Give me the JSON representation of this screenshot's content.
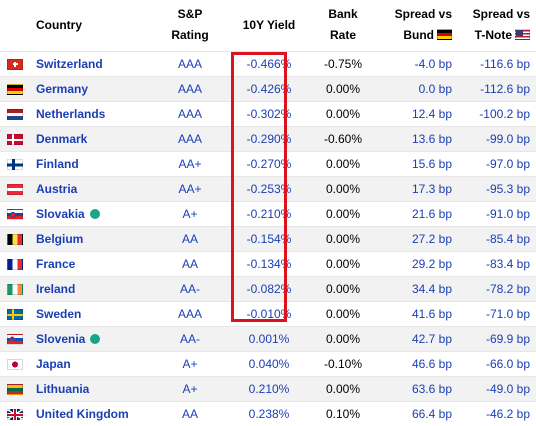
{
  "header": {
    "country": "Country",
    "rating_l1": "S&P",
    "rating_l2": "Rating",
    "yield": "10Y Yield",
    "bank_l1": "Bank",
    "bank_l2": "Rate",
    "bund_l1": "Spread vs",
    "bund_l2": "Bund",
    "tnote_l1": "Spread vs",
    "tnote_l2": "T-Note",
    "bund_flag_icon": "germany-flag-icon",
    "tnote_flag_icon": "usa-flag-icon"
  },
  "colors": {
    "link": "#1a3fb5",
    "highlight_border": "#d9141c",
    "status_dot": "#1aa48a",
    "row_alt_bg": "#f2f2f2"
  },
  "rows": [
    {
      "country": "Switzerland",
      "flag_icon": "switzerland-flag-icon",
      "dot": false,
      "rating": "AAA",
      "yield": "-0.466%",
      "bank_rate": "-0.75%",
      "spread_bund": "-4.0 bp",
      "spread_tnote": "-116.6 bp"
    },
    {
      "country": "Germany",
      "flag_icon": "germany-flag-icon",
      "dot": false,
      "rating": "AAA",
      "yield": "-0.426%",
      "bank_rate": "0.00%",
      "spread_bund": "0.0 bp",
      "spread_tnote": "-112.6 bp"
    },
    {
      "country": "Netherlands",
      "flag_icon": "netherlands-flag-icon",
      "dot": false,
      "rating": "AAA",
      "yield": "-0.302%",
      "bank_rate": "0.00%",
      "spread_bund": "12.4 bp",
      "spread_tnote": "-100.2 bp"
    },
    {
      "country": "Denmark",
      "flag_icon": "denmark-flag-icon",
      "dot": false,
      "rating": "AAA",
      "yield": "-0.290%",
      "bank_rate": "-0.60%",
      "spread_bund": "13.6 bp",
      "spread_tnote": "-99.0 bp"
    },
    {
      "country": "Finland",
      "flag_icon": "finland-flag-icon",
      "dot": false,
      "rating": "AA+",
      "yield": "-0.270%",
      "bank_rate": "0.00%",
      "spread_bund": "15.6 bp",
      "spread_tnote": "-97.0 bp"
    },
    {
      "country": "Austria",
      "flag_icon": "austria-flag-icon",
      "dot": false,
      "rating": "AA+",
      "yield": "-0.253%",
      "bank_rate": "0.00%",
      "spread_bund": "17.3 bp",
      "spread_tnote": "-95.3 bp"
    },
    {
      "country": "Slovakia",
      "flag_icon": "slovakia-flag-icon",
      "dot": true,
      "rating": "A+",
      "yield": "-0.210%",
      "bank_rate": "0.00%",
      "spread_bund": "21.6 bp",
      "spread_tnote": "-91.0 bp"
    },
    {
      "country": "Belgium",
      "flag_icon": "belgium-flag-icon",
      "dot": false,
      "rating": "AA",
      "yield": "-0.154%",
      "bank_rate": "0.00%",
      "spread_bund": "27.2 bp",
      "spread_tnote": "-85.4 bp"
    },
    {
      "country": "France",
      "flag_icon": "france-flag-icon",
      "dot": false,
      "rating": "AA",
      "yield": "-0.134%",
      "bank_rate": "0.00%",
      "spread_bund": "29.2 bp",
      "spread_tnote": "-83.4 bp"
    },
    {
      "country": "Ireland",
      "flag_icon": "ireland-flag-icon",
      "dot": false,
      "rating": "AA-",
      "yield": "-0.082%",
      "bank_rate": "0.00%",
      "spread_bund": "34.4 bp",
      "spread_tnote": "-78.2 bp"
    },
    {
      "country": "Sweden",
      "flag_icon": "sweden-flag-icon",
      "dot": false,
      "rating": "AAA",
      "yield": "-0.010%",
      "bank_rate": "0.00%",
      "spread_bund": "41.6 bp",
      "spread_tnote": "-71.0 bp"
    },
    {
      "country": "Slovenia",
      "flag_icon": "slovenia-flag-icon",
      "dot": true,
      "rating": "AA-",
      "yield": "0.001%",
      "bank_rate": "0.00%",
      "spread_bund": "42.7 bp",
      "spread_tnote": "-69.9 bp"
    },
    {
      "country": "Japan",
      "flag_icon": "japan-flag-icon",
      "dot": false,
      "rating": "A+",
      "yield": "0.040%",
      "bank_rate": "-0.10%",
      "spread_bund": "46.6 bp",
      "spread_tnote": "-66.0 bp"
    },
    {
      "country": "Lithuania",
      "flag_icon": "lithuania-flag-icon",
      "dot": false,
      "rating": "A+",
      "yield": "0.210%",
      "bank_rate": "0.00%",
      "spread_bund": "63.6 bp",
      "spread_tnote": "-49.0 bp"
    },
    {
      "country": "United Kingdom",
      "flag_icon": "united-kingdom-flag-icon",
      "dot": false,
      "rating": "AA",
      "yield": "0.238%",
      "bank_rate": "0.10%",
      "spread_bund": "66.4 bp",
      "spread_tnote": "-46.2 bp"
    }
  ]
}
